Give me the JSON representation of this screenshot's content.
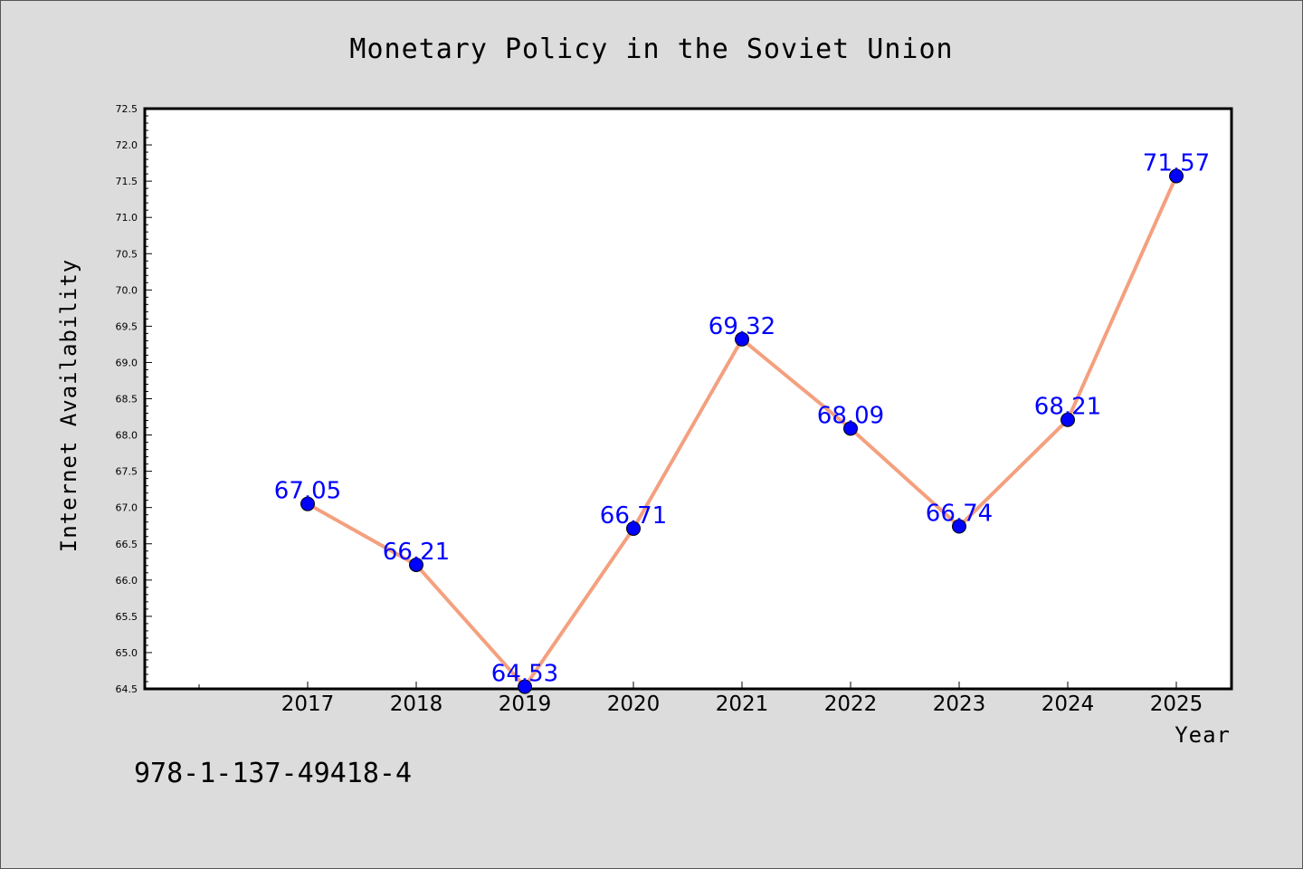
{
  "chart_data": {
    "type": "line",
    "title": "Monetary Policy in the Soviet Union",
    "xlabel": "Year",
    "ylabel": "Internet Availability",
    "categories": [
      "2017",
      "2018",
      "2019",
      "2020",
      "2021",
      "2022",
      "2023",
      "2024",
      "2025"
    ],
    "series": [
      {
        "values": [
          67.05,
          66.21,
          64.53,
          66.71,
          69.32,
          68.09,
          66.74,
          68.21,
          71.57
        ],
        "labels": [
          "67.05",
          "66.21",
          "64.53",
          "66.71",
          "69.32",
          "68.09",
          "66.74",
          "68.21",
          "71.57"
        ],
        "line_color": "#f4a07f",
        "marker_color": "#0000ff",
        "label_color": "#0000ff"
      }
    ],
    "ylim": [
      64.5,
      72.5
    ],
    "yticks": [
      "64.5",
      "65.0",
      "65.5",
      "66.0",
      "66.5",
      "67.0",
      "67.5",
      "68.0",
      "68.5",
      "69.0",
      "69.5",
      "70.0",
      "70.5",
      "71.0",
      "71.5",
      "72.0",
      "72.5"
    ],
    "grid": false,
    "legend": "none"
  },
  "footnote": "978-1-137-49418-4",
  "colors": {
    "background": "#dcdcdc",
    "plot_background": "#ffffff"
  }
}
